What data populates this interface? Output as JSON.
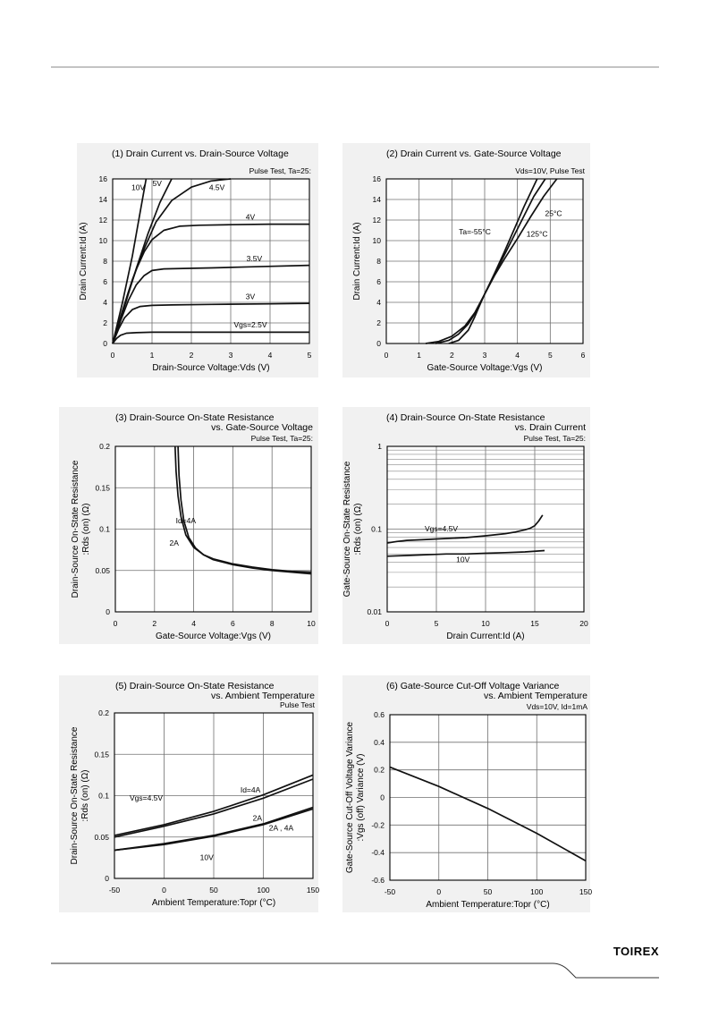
{
  "header": {},
  "footer": {
    "logo": "TOIREX"
  },
  "chart_data": [
    {
      "id": "c1",
      "type": "line",
      "title": "(1) Drain Current vs. Drain-Source Voltage",
      "note": "Pulse Test, Ta=25:",
      "xlabel": "Drain-Source Voltage:Vds (V)",
      "ylabel": "Drain Current:Id (A)",
      "xlim": [
        0,
        5
      ],
      "ylim": [
        0,
        16
      ],
      "xticks": [
        0,
        1,
        2,
        3,
        4,
        5
      ],
      "yticks": [
        0,
        2,
        4,
        6,
        8,
        10,
        12,
        14,
        16
      ],
      "grid": true,
      "series": [
        {
          "name": "10V",
          "x": [
            0,
            0.25,
            0.5,
            0.7,
            0.85
          ],
          "y": [
            0,
            4,
            8.5,
            12.8,
            16
          ]
        },
        {
          "name": "5V",
          "x": [
            0,
            0.3,
            0.6,
            0.9,
            1.2,
            1.5
          ],
          "y": [
            0,
            3.6,
            7.3,
            10.7,
            13.7,
            16
          ]
        },
        {
          "name": "4.5V",
          "x": [
            0,
            0.25,
            0.5,
            0.8,
            1.1,
            1.5,
            2.0,
            2.5,
            3.0
          ],
          "y": [
            0,
            3.2,
            6.2,
            9.2,
            11.8,
            13.9,
            15.2,
            15.8,
            16
          ]
        },
        {
          "name": "4V",
          "x": [
            0,
            0.2,
            0.4,
            0.6,
            0.8,
            1.0,
            1.3,
            1.7,
            2.2,
            3,
            4,
            5
          ],
          "y": [
            0,
            2.5,
            5,
            7.2,
            8.9,
            10.1,
            11,
            11.4,
            11.5,
            11.55,
            11.6,
            11.6
          ]
        },
        {
          "name": "3.5V",
          "x": [
            0,
            0.2,
            0.4,
            0.6,
            0.8,
            1.0,
            1.3,
            1.8,
            2.5,
            3.5,
            5
          ],
          "y": [
            0,
            2.2,
            4.2,
            5.7,
            6.6,
            7.1,
            7.25,
            7.3,
            7.35,
            7.45,
            7.6
          ]
        },
        {
          "name": "3V",
          "x": [
            0,
            0.15,
            0.3,
            0.5,
            0.7,
            1.0,
            1.5,
            2.5,
            4,
            5
          ],
          "y": [
            0,
            1.4,
            2.5,
            3.3,
            3.6,
            3.7,
            3.75,
            3.8,
            3.85,
            3.9
          ]
        },
        {
          "name": "Vgs=2.5V",
          "x": [
            0,
            0.1,
            0.2,
            0.35,
            0.6,
            1.0,
            2,
            3,
            4,
            5
          ],
          "y": [
            0,
            0.5,
            0.8,
            1.0,
            1.05,
            1.1,
            1.1,
            1.1,
            1.1,
            1.1
          ]
        }
      ],
      "labels": [
        {
          "text": "10V",
          "x": 0.65,
          "y": 14.9
        },
        {
          "text": "5V",
          "x": 1.13,
          "y": 15.3
        },
        {
          "text": "4.5V",
          "x": 2.65,
          "y": 14.9
        },
        {
          "text": "4V",
          "x": 3.5,
          "y": 12.05
        },
        {
          "text": "3.5V",
          "x": 3.6,
          "y": 8.0
        },
        {
          "text": "3V",
          "x": 3.5,
          "y": 4.3
        },
        {
          "text": "Vgs=2.5V",
          "x": 3.5,
          "y": 1.55
        }
      ]
    },
    {
      "id": "c2",
      "type": "line",
      "title": "(2) Drain Current vs. Gate-Source Voltage",
      "note": "Vds=10V, Pulse Test",
      "xlabel": "Gate-Source Voltage:Vgs (V)",
      "ylabel": "Drain Current:Id (A)",
      "xlim": [
        0,
        6
      ],
      "ylim": [
        0,
        16
      ],
      "xticks": [
        0,
        1,
        2,
        3,
        4,
        5,
        6
      ],
      "yticks": [
        0,
        2,
        4,
        6,
        8,
        10,
        12,
        14,
        16
      ],
      "grid": true,
      "series": [
        {
          "name": "Ta=-55°C",
          "x": [
            1.2,
            1.6,
            2.0,
            2.4,
            2.7,
            3.0,
            3.3,
            3.6,
            3.9,
            4.2,
            4.6
          ],
          "y": [
            0,
            0.2,
            0.7,
            1.7,
            3,
            4.8,
            6.8,
            8.9,
            11.1,
            13.3,
            16
          ]
        },
        {
          "name": "25°C",
          "x": [
            1.5,
            1.9,
            2.2,
            2.5,
            2.8,
            3.0,
            3.3,
            3.6,
            3.9,
            4.2,
            4.5,
            4.85
          ],
          "y": [
            0,
            0.3,
            0.9,
            1.9,
            3.4,
            4.8,
            6.7,
            8.6,
            10.5,
            12.4,
            14.3,
            16
          ]
        },
        {
          "name": "125°C",
          "x": [
            1.9,
            2.2,
            2.5,
            2.7,
            2.9,
            3.0,
            3.3,
            3.6,
            4.0,
            4.4,
            4.8,
            5.2
          ],
          "y": [
            0,
            0.3,
            1.3,
            2.6,
            4.1,
            4.8,
            6.6,
            8.2,
            10.2,
            12.3,
            14.3,
            16
          ]
        }
      ],
      "labels": [
        {
          "text": "25°C",
          "x": 5.1,
          "y": 12.4
        },
        {
          "text": "Ta=-55°C",
          "x": 2.7,
          "y": 10.6
        },
        {
          "text": "125°C",
          "x": 4.6,
          "y": 10.4
        }
      ]
    },
    {
      "id": "c3",
      "type": "line",
      "title": "(3) Drain-Source On-State Resistance",
      "title2": "vs. Gate-Source Voltage",
      "note": "Pulse Test, Ta=25:",
      "xlabel": "Gate-Source Voltage:Vgs (V)",
      "ylabel": "Drain-Source On-State Resistance",
      "ylabel2": ":Rds (on) (Ω)",
      "xlim": [
        0,
        10
      ],
      "ylim": [
        0,
        0.2
      ],
      "xticks": [
        0,
        2,
        4,
        6,
        8,
        10
      ],
      "yticks": [
        0,
        0.05,
        0.1,
        0.15,
        0.2
      ],
      "grid": true,
      "series": [
        {
          "name": "Id=4A",
          "x": [
            3.05,
            3.1,
            3.2,
            3.35,
            3.6,
            4.0,
            4.5,
            5.0,
            6.0,
            7.0,
            8.0,
            9.0,
            10
          ],
          "y": [
            0.2,
            0.17,
            0.14,
            0.115,
            0.093,
            0.078,
            0.069,
            0.063,
            0.057,
            0.053,
            0.05,
            0.048,
            0.046
          ]
        },
        {
          "name": "2A",
          "x": [
            3.2,
            3.25,
            3.35,
            3.5,
            3.75,
            4.1,
            4.5,
            5.0,
            6.0,
            7.0,
            8.0,
            9.0,
            10
          ],
          "y": [
            0.2,
            0.165,
            0.135,
            0.11,
            0.09,
            0.077,
            0.069,
            0.064,
            0.058,
            0.054,
            0.051,
            0.049,
            0.048
          ]
        }
      ],
      "labels": [
        {
          "text": "Id=4A",
          "x": 3.6,
          "y": 0.107
        },
        {
          "text": "2A",
          "x": 3.0,
          "y": 0.08
        }
      ]
    },
    {
      "id": "c4",
      "type": "line",
      "title": "(4) Drain-Source On-State Resistance",
      "title2": "vs. Drain Current",
      "note": "Pulse Test, Ta=25:",
      "xlabel": "Drain Current:Id (A)",
      "ylabel": "Gate-Source On-State Resistance",
      "ylabel2": ":Rds (on) (Ω)",
      "xscale": "linear",
      "yscale": "log",
      "xlim": [
        0,
        20
      ],
      "ylim": [
        0.01,
        1
      ],
      "xticks": [
        0,
        5,
        10,
        15,
        20
      ],
      "yticks": [
        0.01,
        0.1,
        1
      ],
      "grid": true,
      "series": [
        {
          "name": "Vgs=4.5V",
          "x": [
            0,
            1,
            2,
            4,
            6,
            8,
            10,
            12,
            13,
            14,
            14.5,
            15,
            15.4,
            15.8
          ],
          "y": [
            0.068,
            0.071,
            0.073,
            0.075,
            0.077,
            0.079,
            0.083,
            0.088,
            0.092,
            0.098,
            0.102,
            0.11,
            0.125,
            0.148
          ]
        },
        {
          "name": "10V",
          "x": [
            0,
            2,
            4,
            6,
            8,
            10,
            12,
            14,
            16
          ],
          "y": [
            0.047,
            0.048,
            0.049,
            0.05,
            0.05,
            0.051,
            0.052,
            0.053,
            0.055
          ]
        }
      ],
      "labels": [
        {
          "text": "Vgs=4.5V",
          "x": 5.5,
          "y": 0.094
        },
        {
          "text": "10V",
          "x": 7.7,
          "y": 0.04
        }
      ]
    },
    {
      "id": "c5",
      "type": "line",
      "title": "(5) Drain-Source On-State Resistance",
      "title2": "vs. Ambient Temperature",
      "note": "Pulse Test",
      "xlabel": "Ambient Temperature:Topr (°C)",
      "ylabel": "Drain-Source On-State Resistance",
      "ylabel2": ":Rds (on) (Ω)",
      "xlim": [
        -50,
        150
      ],
      "ylim": [
        0,
        0.2
      ],
      "xticks": [
        -50,
        0,
        50,
        100,
        150
      ],
      "yticks": [
        0,
        0.05,
        0.1,
        0.15,
        0.2
      ],
      "grid": true,
      "series": [
        {
          "name": "Vgs=4.5V Id=4A",
          "x": [
            -50,
            0,
            50,
            100,
            150
          ],
          "y": [
            0.052,
            0.065,
            0.081,
            0.101,
            0.125
          ]
        },
        {
          "name": "Vgs=4.5V 2A",
          "x": [
            -50,
            0,
            50,
            100,
            150
          ],
          "y": [
            0.05,
            0.063,
            0.078,
            0.097,
            0.12
          ]
        },
        {
          "name": "10V 2A",
          "x": [
            -50,
            0,
            50,
            100,
            150
          ],
          "y": [
            0.034,
            0.041,
            0.051,
            0.065,
            0.084
          ]
        },
        {
          "name": "10V 4A",
          "x": [
            -50,
            0,
            50,
            100,
            150
          ],
          "y": [
            0.034,
            0.042,
            0.052,
            0.066,
            0.086
          ]
        }
      ],
      "labels": [
        {
          "text": "Vgs=4.5V",
          "x": -18,
          "y": 0.094
        },
        {
          "text": "Id=4A",
          "x": 87,
          "y": 0.104
        },
        {
          "text": "2A",
          "x": 94,
          "y": 0.07
        },
        {
          "text": "2A , 4A",
          "x": 118,
          "y": 0.058
        },
        {
          "text": "10V",
          "x": 43,
          "y": 0.022
        }
      ]
    },
    {
      "id": "c6",
      "type": "line",
      "title": "(6) Gate-Source Cut-Off Voltage Variance",
      "title2": "vs. Ambient Temperature",
      "note": "Vds=10V, Id=1mA",
      "xlabel": "Ambient Temperature:Topr (°C)",
      "ylabel": "Gate-Source Cut-Off Voltage Variance",
      "ylabel2": ":Vgs (off) Variance (V)",
      "xlim": [
        -50,
        150
      ],
      "ylim": [
        -0.6,
        0.6
      ],
      "xticks": [
        -50,
        0,
        50,
        100,
        150
      ],
      "yticks": [
        -0.6,
        -0.4,
        -0.2,
        0,
        0.2,
        0.4,
        0.6
      ],
      "grid": true,
      "series": [
        {
          "name": "Vgs(off)",
          "x": [
            -50,
            0,
            50,
            100,
            150
          ],
          "y": [
            0.22,
            0.08,
            -0.08,
            -0.26,
            -0.46
          ]
        }
      ],
      "labels": []
    }
  ]
}
